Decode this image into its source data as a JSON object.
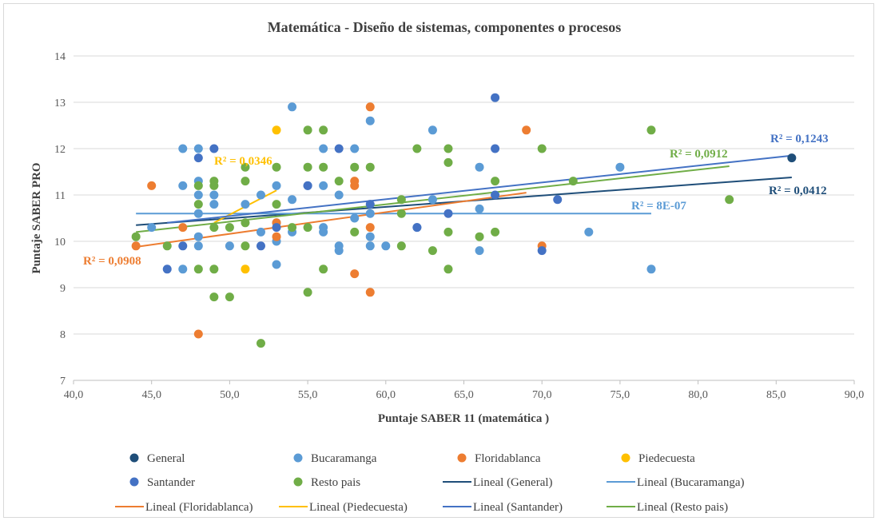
{
  "chart_data": {
    "type": "scatter",
    "title": "Matemática - Diseño de sistemas, componentes  o procesos",
    "xlabel": "Puntaje  SABER 11 (matemática  )",
    "ylabel": "Puntaje  SABER PRO",
    "xlim": [
      40,
      90
    ],
    "ylim": [
      7,
      14
    ],
    "x_ticks": [
      "40,0",
      "45,0",
      "50,0",
      "55,0",
      "60,0",
      "65,0",
      "70,0",
      "75,0",
      "80,0",
      "85,0",
      "90,0"
    ],
    "y_ticks": [
      "7",
      "8",
      "9",
      "10",
      "11",
      "12",
      "13",
      "14"
    ],
    "grid": "horizontal",
    "legend_position": "bottom",
    "colors": {
      "general": "#1f4e79",
      "bucaramanga": "#5b9bd5",
      "floridablanca": "#ed7d31",
      "piedecuesta": "#ffc000",
      "santander": "#4472c4",
      "resto": "#70ad47"
    },
    "series": [
      {
        "name": "General",
        "color": "#1f4e79",
        "points": [
          [
            86,
            11.8
          ]
        ]
      },
      {
        "name": "Bucaramanga",
        "color": "#5b9bd5",
        "points": [
          [
            45,
            10.3
          ],
          [
            47,
            12.0
          ],
          [
            47,
            11.2
          ],
          [
            47,
            9.4
          ],
          [
            48,
            12.0
          ],
          [
            48,
            11.3
          ],
          [
            48,
            11.0
          ],
          [
            48,
            10.6
          ],
          [
            48,
            10.1
          ],
          [
            48,
            9.9
          ],
          [
            49,
            11.0
          ],
          [
            49,
            10.8
          ],
          [
            50,
            9.9
          ],
          [
            51,
            10.8
          ],
          [
            52,
            11.0
          ],
          [
            52,
            10.2
          ],
          [
            53,
            11.2
          ],
          [
            53,
            10.4
          ],
          [
            53,
            9.5
          ],
          [
            53,
            10.0
          ],
          [
            54,
            12.9
          ],
          [
            54,
            10.9
          ],
          [
            54,
            10.2
          ],
          [
            55,
            11.2
          ],
          [
            56,
            12.0
          ],
          [
            56,
            11.2
          ],
          [
            56,
            10.3
          ],
          [
            56,
            10.2
          ],
          [
            57,
            11.0
          ],
          [
            57,
            9.9
          ],
          [
            57,
            9.8
          ],
          [
            58,
            12.0
          ],
          [
            58,
            10.5
          ],
          [
            59,
            12.6
          ],
          [
            59,
            10.6
          ],
          [
            59,
            10.1
          ],
          [
            59,
            9.9
          ],
          [
            60,
            9.9
          ],
          [
            62,
            10.3
          ],
          [
            63,
            12.4
          ],
          [
            63,
            10.9
          ],
          [
            66,
            11.6
          ],
          [
            66,
            10.7
          ],
          [
            66,
            9.8
          ],
          [
            73,
            10.2
          ],
          [
            75,
            11.6
          ],
          [
            77,
            9.4
          ]
        ]
      },
      {
        "name": "Floridablanca",
        "color": "#ed7d31",
        "points": [
          [
            44,
            9.9
          ],
          [
            45,
            11.2
          ],
          [
            47,
            10.3
          ],
          [
            48,
            8.0
          ],
          [
            53,
            10.4
          ],
          [
            53,
            10.1
          ],
          [
            58,
            11.3
          ],
          [
            58,
            11.2
          ],
          [
            58,
            9.3
          ],
          [
            59,
            12.9
          ],
          [
            59,
            10.3
          ],
          [
            59,
            8.9
          ],
          [
            69,
            12.4
          ],
          [
            70,
            9.9
          ]
        ]
      },
      {
        "name": "Piedecuesta",
        "color": "#ffc000",
        "points": [
          [
            53,
            12.4
          ],
          [
            51,
            9.4
          ]
        ]
      },
      {
        "name": "Santander",
        "color": "#4472c4",
        "points": [
          [
            46,
            9.4
          ],
          [
            47,
            9.9
          ],
          [
            48,
            11.8
          ],
          [
            49,
            12.0
          ],
          [
            52,
            9.9
          ],
          [
            53,
            10.3
          ],
          [
            55,
            11.2
          ],
          [
            57,
            12.0
          ],
          [
            59,
            10.8
          ],
          [
            62,
            10.3
          ],
          [
            64,
            10.6
          ],
          [
            67,
            13.1
          ],
          [
            67,
            12.0
          ],
          [
            67,
            11.0
          ],
          [
            70,
            9.8
          ],
          [
            71,
            10.9
          ]
        ]
      },
      {
        "name": "Resto pais",
        "color": "#70ad47",
        "points": [
          [
            44,
            10.1
          ],
          [
            46,
            9.9
          ],
          [
            48,
            11.2
          ],
          [
            48,
            10.8
          ],
          [
            48,
            9.4
          ],
          [
            49,
            11.3
          ],
          [
            49,
            11.2
          ],
          [
            49,
            10.3
          ],
          [
            49,
            9.4
          ],
          [
            49,
            8.8
          ],
          [
            50,
            10.3
          ],
          [
            50,
            8.8
          ],
          [
            51,
            11.6
          ],
          [
            51,
            11.3
          ],
          [
            51,
            10.4
          ],
          [
            51,
            9.9
          ],
          [
            52,
            7.8
          ],
          [
            53,
            11.6
          ],
          [
            53,
            10.8
          ],
          [
            54,
            10.3
          ],
          [
            55,
            12.4
          ],
          [
            55,
            11.6
          ],
          [
            55,
            10.3
          ],
          [
            55,
            8.9
          ],
          [
            56,
            12.4
          ],
          [
            56,
            11.6
          ],
          [
            56,
            9.4
          ],
          [
            57,
            11.3
          ],
          [
            58,
            11.6
          ],
          [
            58,
            10.2
          ],
          [
            59,
            11.6
          ],
          [
            61,
            10.9
          ],
          [
            61,
            10.6
          ],
          [
            61,
            9.9
          ],
          [
            62,
            12.0
          ],
          [
            63,
            9.8
          ],
          [
            64,
            12.0
          ],
          [
            64,
            11.7
          ],
          [
            64,
            10.2
          ],
          [
            64,
            9.4
          ],
          [
            66,
            10.1
          ],
          [
            67,
            11.3
          ],
          [
            67,
            10.2
          ],
          [
            70,
            12.0
          ],
          [
            72,
            11.3
          ],
          [
            77,
            12.4
          ],
          [
            82,
            10.9
          ]
        ]
      }
    ],
    "trendlines": [
      {
        "name": "Lineal (General)",
        "color": "#1f4e79",
        "x": [
          44,
          86
        ],
        "y": [
          10.35,
          11.38
        ],
        "r2_label": "R² = 0,0412"
      },
      {
        "name": "Lineal (Bucaramanga)",
        "color": "#5b9bd5",
        "x": [
          44,
          77
        ],
        "y": [
          10.6,
          10.6
        ],
        "r2_label": "R² = 8E-07"
      },
      {
        "name": "Lineal (Floridablanca)",
        "color": "#ed7d31",
        "x": [
          44,
          69
        ],
        "y": [
          9.88,
          11.05
        ],
        "r2_label": "R² = 0,0908"
      },
      {
        "name": "Lineal (Piedecuesta)",
        "color": "#ffc000",
        "x": [
          49,
          53
        ],
        "y": [
          10.4,
          11.1
        ],
        "r2_label": "R² = 0,0346"
      },
      {
        "name": "Lineal (Santander)",
        "color": "#4472c4",
        "x": [
          46,
          86
        ],
        "y": [
          10.4,
          11.85
        ],
        "r2_label": "R² = 0,1243"
      },
      {
        "name": "Lineal (Resto pais)",
        "color": "#70ad47",
        "x": [
          44,
          82
        ],
        "y": [
          10.2,
          11.62
        ],
        "r2_label": "R² = 0,0912"
      }
    ],
    "legend": [
      {
        "label": "General",
        "kind": "marker",
        "color": "#1f4e79"
      },
      {
        "label": "Bucaramanga",
        "kind": "marker",
        "color": "#5b9bd5"
      },
      {
        "label": "Floridablanca",
        "kind": "marker",
        "color": "#ed7d31"
      },
      {
        "label": "Piedecuesta",
        "kind": "marker",
        "color": "#ffc000"
      },
      {
        "label": "Santander",
        "kind": "marker",
        "color": "#4472c4"
      },
      {
        "label": "Resto pais",
        "kind": "marker",
        "color": "#70ad47"
      },
      {
        "label": "Lineal (General)",
        "kind": "line",
        "color": "#1f4e79"
      },
      {
        "label": "Lineal (Bucaramanga)",
        "kind": "line",
        "color": "#5b9bd5"
      },
      {
        "label": "Lineal (Floridablanca)",
        "kind": "line",
        "color": "#ed7d31"
      },
      {
        "label": "Lineal (Piedecuesta)",
        "kind": "line",
        "color": "#ffc000"
      },
      {
        "label": "Lineal (Santander)",
        "kind": "line",
        "color": "#4472c4"
      },
      {
        "label": "Lineal (Resto pais)",
        "kind": "line",
        "color": "#70ad47"
      }
    ]
  }
}
